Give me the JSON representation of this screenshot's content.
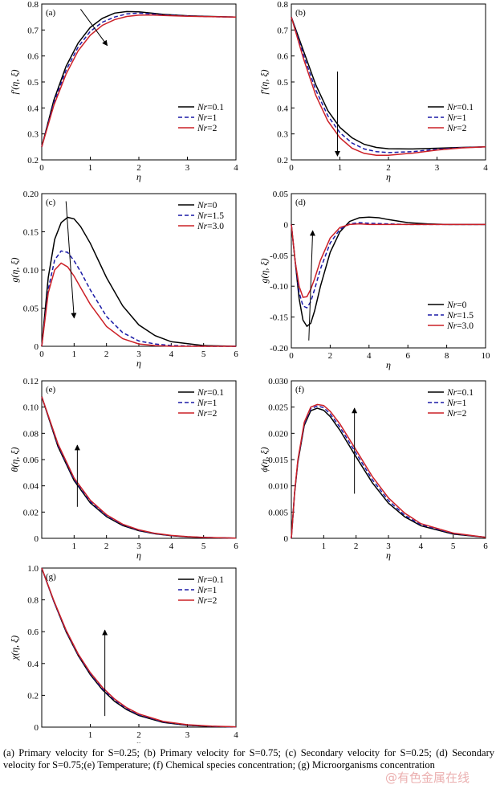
{
  "caption": {
    "text": "(a) Primary velocity for S=0.25; (b) Primary velocity for S=0.75; (c) Secondary velocity for S=0.25; (d) Secondary velocity for S=0.75;(e) Temperature; (f) Chemical species concentration; (g) Microorganisms concentration"
  },
  "watermark": "@有色金属在线",
  "colors": {
    "series1": "#000000",
    "series2": "#1a1aa6",
    "series3": "#cc2027"
  },
  "chart_data": [
    {
      "type": "line",
      "panel": "(a)",
      "xlabel": "η",
      "ylabel": "f′(η, ξ)",
      "xlim": [
        0,
        4
      ],
      "ylim": [
        0.2,
        0.8
      ],
      "xticks": [
        0,
        1,
        2,
        3,
        4
      ],
      "xtick_labels": [
        "0",
        "1",
        "2",
        "3",
        "4"
      ],
      "yticks": [
        0.2,
        0.3,
        0.4,
        0.5,
        0.6,
        0.7,
        0.8
      ],
      "ytick_labels": [
        "0.2",
        "0.3",
        "0.4",
        "0.5",
        "0.6",
        "0.7",
        "0.8"
      ],
      "legend": "mid-right",
      "arrow": {
        "from": [
          0.8,
          0.78
        ],
        "to": [
          1.35,
          0.64
        ]
      },
      "series": [
        {
          "name": "Nr=0.1",
          "x": [
            0,
            0.25,
            0.5,
            0.75,
            1.0,
            1.25,
            1.5,
            1.75,
            2.0,
            2.25,
            2.5,
            3.0,
            3.5,
            4.0
          ],
          "y": [
            0.25,
            0.43,
            0.56,
            0.65,
            0.71,
            0.745,
            0.765,
            0.771,
            0.77,
            0.765,
            0.76,
            0.755,
            0.752,
            0.75
          ]
        },
        {
          "name": "Nr=1",
          "x": [
            0,
            0.25,
            0.5,
            0.75,
            1.0,
            1.25,
            1.5,
            1.75,
            2.0,
            2.25,
            2.5,
            3.0,
            3.5,
            4.0
          ],
          "y": [
            0.25,
            0.42,
            0.545,
            0.635,
            0.695,
            0.73,
            0.75,
            0.762,
            0.765,
            0.762,
            0.758,
            0.754,
            0.751,
            0.75
          ]
        },
        {
          "name": "Nr=2",
          "x": [
            0,
            0.25,
            0.5,
            0.75,
            1.0,
            1.25,
            1.5,
            1.75,
            2.0,
            2.25,
            2.5,
            3.0,
            3.5,
            4.0
          ],
          "y": [
            0.25,
            0.41,
            0.53,
            0.62,
            0.68,
            0.718,
            0.74,
            0.752,
            0.757,
            0.758,
            0.756,
            0.753,
            0.751,
            0.75
          ]
        }
      ]
    },
    {
      "type": "line",
      "panel": "(b)",
      "xlabel": "η",
      "ylabel": "f′(η, ξ)",
      "xlim": [
        0,
        4
      ],
      "ylim": [
        0.2,
        0.8
      ],
      "xticks": [
        0,
        1,
        2,
        3,
        4
      ],
      "xtick_labels": [
        "0",
        "1",
        "2",
        "3",
        "4"
      ],
      "yticks": [
        0.2,
        0.3,
        0.4,
        0.5,
        0.6,
        0.7,
        0.8
      ],
      "ytick_labels": [
        "0.2",
        "0.3",
        "0.4",
        "0.5",
        "0.6",
        "0.7",
        "0.8"
      ],
      "legend": "mid-right",
      "arrow": {
        "from": [
          0.95,
          0.54
        ],
        "to": [
          0.95,
          0.215
        ]
      },
      "series": [
        {
          "name": "Nr=0.1",
          "x": [
            0,
            0.25,
            0.5,
            0.75,
            1.0,
            1.25,
            1.5,
            1.75,
            2.0,
            2.5,
            3.0,
            3.5,
            4.0
          ],
          "y": [
            0.75,
            0.62,
            0.49,
            0.39,
            0.325,
            0.285,
            0.26,
            0.248,
            0.243,
            0.242,
            0.245,
            0.248,
            0.25
          ]
        },
        {
          "name": "Nr=1",
          "x": [
            0,
            0.25,
            0.5,
            0.75,
            1.0,
            1.25,
            1.5,
            1.75,
            2.0,
            2.5,
            3.0,
            3.5,
            4.0
          ],
          "y": [
            0.75,
            0.605,
            0.47,
            0.37,
            0.305,
            0.265,
            0.242,
            0.232,
            0.228,
            0.232,
            0.241,
            0.247,
            0.25
          ]
        },
        {
          "name": "Nr=2",
          "x": [
            0,
            0.25,
            0.5,
            0.75,
            1.0,
            1.25,
            1.5,
            1.75,
            2.0,
            2.5,
            3.0,
            3.5,
            4.0
          ],
          "y": [
            0.75,
            0.59,
            0.45,
            0.35,
            0.285,
            0.245,
            0.225,
            0.218,
            0.218,
            0.226,
            0.238,
            0.246,
            0.25
          ]
        }
      ]
    },
    {
      "type": "line",
      "panel": "(c)",
      "xlabel": "η",
      "ylabel": "g(η, ξ)",
      "xlim": [
        0,
        6
      ],
      "ylim": [
        0,
        0.2
      ],
      "xticks": [
        0,
        1,
        2,
        3,
        4,
        5,
        6
      ],
      "xtick_labels": [
        "0",
        "1",
        "2",
        "3",
        "4",
        "5",
        "6"
      ],
      "yticks": [
        0,
        0.05,
        0.1,
        0.15,
        0.2
      ],
      "ytick_labels": [
        "0",
        "0.05",
        "0.10",
        "0.15",
        "0.20"
      ],
      "legend": "top-right",
      "arrow": {
        "from": [
          0.75,
          0.19
        ],
        "to": [
          1.0,
          0.037
        ]
      },
      "series": [
        {
          "name": "Nr=0",
          "x": [
            0,
            0.2,
            0.4,
            0.6,
            0.8,
            1.0,
            1.2,
            1.5,
            2.0,
            2.5,
            3.0,
            3.5,
            4.0,
            5.0,
            6.0
          ],
          "y": [
            0,
            0.09,
            0.14,
            0.162,
            0.169,
            0.167,
            0.157,
            0.135,
            0.09,
            0.053,
            0.028,
            0.014,
            0.006,
            0.001,
            0
          ]
        },
        {
          "name": "Nr=1.5",
          "x": [
            0,
            0.2,
            0.4,
            0.6,
            0.8,
            1.0,
            1.2,
            1.5,
            2.0,
            2.5,
            3.0,
            3.5,
            4.0,
            5.0,
            6.0
          ],
          "y": [
            0,
            0.075,
            0.113,
            0.125,
            0.123,
            0.112,
            0.098,
            0.074,
            0.039,
            0.018,
            0.007,
            0.003,
            0.001,
            0,
            0
          ]
        },
        {
          "name": "Nr=3.0",
          "x": [
            0,
            0.2,
            0.4,
            0.6,
            0.8,
            1.0,
            1.2,
            1.5,
            2.0,
            2.5,
            3.0,
            3.5,
            4.0,
            5.0,
            6.0
          ],
          "y": [
            0,
            0.07,
            0.1,
            0.109,
            0.104,
            0.092,
            0.077,
            0.055,
            0.026,
            0.01,
            0.003,
            0.001,
            0,
            0,
            0
          ]
        }
      ]
    },
    {
      "type": "line",
      "panel": "(d)",
      "xlabel": "η",
      "ylabel": "g(η, ξ)",
      "xlim": [
        0,
        10
      ],
      "ylim": [
        -0.2,
        0.05
      ],
      "xticks": [
        0,
        2,
        4,
        6,
        8,
        10
      ],
      "xtick_labels": [
        "0",
        "2",
        "4",
        "6",
        "8",
        "10"
      ],
      "yticks": [
        -0.2,
        -0.15,
        -0.1,
        -0.05,
        0,
        0.05
      ],
      "ytick_labels": [
        "-0.20",
        "-0.15",
        "-0.10",
        "-0.05",
        "0",
        "0.05"
      ],
      "legend": "bottom-right",
      "arrow": {
        "from": [
          0.9,
          -0.188
        ],
        "to": [
          1.1,
          -0.01
        ]
      },
      "series": [
        {
          "name": "Nr=0",
          "x": [
            0,
            0.2,
            0.4,
            0.6,
            0.8,
            1.0,
            1.2,
            1.5,
            2.0,
            2.5,
            3.0,
            3.5,
            4.0,
            4.5,
            5.0,
            6.0,
            7.0,
            8.0,
            10.0
          ],
          "y": [
            0,
            -0.06,
            -0.12,
            -0.155,
            -0.165,
            -0.16,
            -0.14,
            -0.1,
            -0.045,
            -0.012,
            0.005,
            0.011,
            0.012,
            0.011,
            0.008,
            0.003,
            0.001,
            0,
            0
          ]
        },
        {
          "name": "Nr=1.5",
          "x": [
            0,
            0.2,
            0.4,
            0.6,
            0.8,
            1.0,
            1.2,
            1.5,
            2.0,
            2.5,
            3.0,
            3.5,
            4.0,
            5.0,
            6.0,
            8.0,
            10.0
          ],
          "y": [
            0,
            -0.06,
            -0.11,
            -0.132,
            -0.135,
            -0.125,
            -0.105,
            -0.072,
            -0.03,
            -0.008,
            0.001,
            0.003,
            0.002,
            0.001,
            0,
            0,
            0
          ]
        },
        {
          "name": "Nr=3.0",
          "x": [
            0,
            0.2,
            0.4,
            0.6,
            0.8,
            1.0,
            1.2,
            1.5,
            2.0,
            2.5,
            3.0,
            3.5,
            4.0,
            5.0,
            6.0,
            8.0,
            10.0
          ],
          "y": [
            0,
            -0.06,
            -0.1,
            -0.118,
            -0.117,
            -0.105,
            -0.088,
            -0.058,
            -0.022,
            -0.005,
            0,
            0.001,
            0,
            0,
            0,
            0,
            0
          ]
        }
      ]
    },
    {
      "type": "line",
      "panel": "(e)",
      "xlabel": "η",
      "ylabel": "θ(η, ξ)",
      "xlim": [
        0,
        6
      ],
      "ylim": [
        0,
        0.12
      ],
      "xticks": [
        1,
        2,
        3,
        4,
        5,
        6
      ],
      "xtick_labels": [
        "1",
        "2",
        "3",
        "4",
        "5",
        "6"
      ],
      "yticks": [
        0,
        0.02,
        0.04,
        0.06,
        0.08,
        0.1,
        0.12
      ],
      "ytick_labels": [
        "0",
        "0.02",
        "0.04",
        "0.06",
        "0.08",
        "0.10",
        "0.12"
      ],
      "legend": "top-right",
      "arrow": {
        "from": [
          1.1,
          0.024
        ],
        "to": [
          1.1,
          0.071
        ]
      },
      "series": [
        {
          "name": "Nr=0.1",
          "x": [
            0,
            0.5,
            1.0,
            1.5,
            2.0,
            2.5,
            3.0,
            3.5,
            4.0,
            4.5,
            5.0,
            6.0
          ],
          "y": [
            0.108,
            0.07,
            0.044,
            0.027,
            0.0165,
            0.0098,
            0.0058,
            0.0034,
            0.002,
            0.0011,
            0.0006,
            0.0001
          ]
        },
        {
          "name": "Nr=1",
          "x": [
            0,
            0.5,
            1.0,
            1.5,
            2.0,
            2.5,
            3.0,
            3.5,
            4.0,
            4.5,
            5.0,
            6.0
          ],
          "y": [
            0.108,
            0.071,
            0.045,
            0.028,
            0.0172,
            0.0103,
            0.0061,
            0.0036,
            0.0021,
            0.0012,
            0.0007,
            0.0001
          ]
        },
        {
          "name": "Nr=2",
          "x": [
            0,
            0.5,
            1.0,
            1.5,
            2.0,
            2.5,
            3.0,
            3.5,
            4.0,
            4.5,
            5.0,
            6.0
          ],
          "y": [
            0.108,
            0.072,
            0.046,
            0.029,
            0.018,
            0.0108,
            0.0065,
            0.0038,
            0.0022,
            0.0013,
            0.0007,
            0.0001
          ]
        }
      ]
    },
    {
      "type": "line",
      "panel": "(f)",
      "xlabel": "η",
      "ylabel": "ϕ(η, ξ)",
      "xlim": [
        0,
        6
      ],
      "ylim": [
        0,
        0.03
      ],
      "xticks": [
        1,
        2,
        3,
        4,
        5,
        6
      ],
      "xtick_labels": [
        "1",
        "2",
        "3",
        "4",
        "5",
        "6"
      ],
      "yticks": [
        0,
        0.005,
        0.01,
        0.015,
        0.02,
        0.025,
        0.03
      ],
      "ytick_labels": [
        "0",
        "0.005",
        "0.010",
        "0.015",
        "0.020",
        "0.025",
        "0.030"
      ],
      "legend": "top-right",
      "arrow": {
        "from": [
          1.95,
          0.0085
        ],
        "to": [
          1.95,
          0.0248
        ]
      },
      "series": [
        {
          "name": "Nr=0.1",
          "x": [
            0,
            0.1,
            0.2,
            0.4,
            0.6,
            0.8,
            1.0,
            1.2,
            1.5,
            2.0,
            2.5,
            3.0,
            3.5,
            4.0,
            5.0,
            6.0
          ],
          "y": [
            0,
            0.0085,
            0.0145,
            0.0215,
            0.0243,
            0.0248,
            0.0244,
            0.0232,
            0.0206,
            0.0155,
            0.0106,
            0.0067,
            0.0041,
            0.0024,
            0.0008,
            0.0002
          ]
        },
        {
          "name": "Nr=1",
          "x": [
            0,
            0.1,
            0.2,
            0.4,
            0.6,
            0.8,
            1.0,
            1.2,
            1.5,
            2.0,
            2.5,
            3.0,
            3.5,
            4.0,
            5.0,
            6.0
          ],
          "y": [
            0,
            0.0086,
            0.0147,
            0.0218,
            0.0247,
            0.0252,
            0.0249,
            0.0237,
            0.0212,
            0.0162,
            0.0112,
            0.0072,
            0.0044,
            0.0026,
            0.0009,
            0.0002
          ]
        },
        {
          "name": "Nr=2",
          "x": [
            0,
            0.1,
            0.2,
            0.4,
            0.6,
            0.8,
            1.0,
            1.2,
            1.5,
            2.0,
            2.5,
            3.0,
            3.5,
            4.0,
            5.0,
            6.0
          ],
          "y": [
            0,
            0.0087,
            0.0149,
            0.0221,
            0.025,
            0.0255,
            0.0253,
            0.0242,
            0.0218,
            0.0168,
            0.0118,
            0.0077,
            0.0048,
            0.0028,
            0.001,
            0.0002
          ]
        }
      ]
    },
    {
      "type": "line",
      "panel": "(g)",
      "xlabel": "η",
      "ylabel": "χ(η, ξ)",
      "xlim": [
        0,
        4
      ],
      "ylim": [
        0,
        1.0
      ],
      "xticks": [
        1,
        2,
        3,
        4
      ],
      "xtick_labels": [
        "1",
        "2",
        "3",
        "4"
      ],
      "yticks": [
        0,
        0.2,
        0.4,
        0.6,
        0.8,
        1.0
      ],
      "ytick_labels": [
        "0",
        "0.2",
        "0.4",
        "0.6",
        "0.8",
        "1.0"
      ],
      "legend": "top-right",
      "arrow": {
        "from": [
          1.3,
          0.07
        ],
        "to": [
          1.3,
          0.61
        ]
      },
      "series": [
        {
          "name": "Nr=0.1",
          "x": [
            0,
            0.25,
            0.5,
            0.75,
            1.0,
            1.25,
            1.5,
            1.75,
            2.0,
            2.5,
            3.0,
            3.5,
            4.0
          ],
          "y": [
            1.0,
            0.79,
            0.6,
            0.45,
            0.33,
            0.235,
            0.162,
            0.11,
            0.073,
            0.03,
            0.011,
            0.004,
            0.001
          ]
        },
        {
          "name": "Nr=1",
          "x": [
            0,
            0.25,
            0.5,
            0.75,
            1.0,
            1.25,
            1.5,
            1.75,
            2.0,
            2.5,
            3.0,
            3.5,
            4.0
          ],
          "y": [
            1.0,
            0.79,
            0.605,
            0.455,
            0.336,
            0.242,
            0.17,
            0.116,
            0.078,
            0.033,
            0.013,
            0.005,
            0.001
          ]
        },
        {
          "name": "Nr=2",
          "x": [
            0,
            0.25,
            0.5,
            0.75,
            1.0,
            1.25,
            1.5,
            1.75,
            2.0,
            2.5,
            3.0,
            3.5,
            4.0
          ],
          "y": [
            1.0,
            0.795,
            0.61,
            0.46,
            0.343,
            0.25,
            0.177,
            0.122,
            0.083,
            0.036,
            0.015,
            0.006,
            0.002
          ]
        }
      ]
    }
  ]
}
